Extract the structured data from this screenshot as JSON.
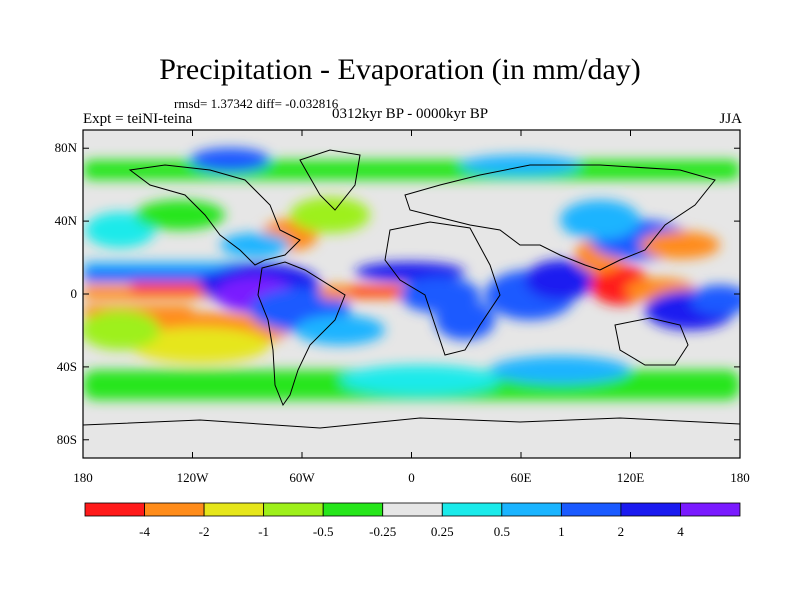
{
  "header": {
    "title": "Precipitation - Evaporation (in mm/day)",
    "stats": "rmsd= 1.37342 diff= -0.032816",
    "period": "0312kyr BP - 0000kyr BP",
    "experiment": "Expt = teiNI-teina",
    "season": "JJA"
  },
  "axes": {
    "y_ticks": [
      "80N",
      "40N",
      "0",
      "40S",
      "80S"
    ],
    "y_values": [
      80,
      40,
      0,
      -40,
      -80
    ],
    "x_ticks": [
      "180",
      "120W",
      "60W",
      "0",
      "60E",
      "120E",
      "180"
    ],
    "x_values": [
      -180,
      -120,
      -60,
      0,
      60,
      120,
      180
    ],
    "lon_range": [
      -180,
      180
    ],
    "lat_range": [
      -90,
      90
    ]
  },
  "colorbar": {
    "colors": [
      "#ff1a1a",
      "#ff8c1a",
      "#e6e61a",
      "#9ef01a",
      "#26e61a",
      "#e6e6e6",
      "#1aeaea",
      "#1ab4ff",
      "#1a5aff",
      "#1a1af0",
      "#7a1aff"
    ],
    "labels": [
      "-4",
      "-2",
      "-1",
      "-0.5",
      "-0.25",
      "0.25",
      "0.5",
      "1",
      "2",
      "4"
    ]
  },
  "chart_data": {
    "type": "heatmap",
    "title": "Precipitation - Evaporation (in mm/day)",
    "subtitle": "0312kyr BP - 0000kyr BP",
    "xlim": [
      -180,
      180
    ],
    "ylim": [
      -90,
      90
    ],
    "levels": [
      -4,
      -2,
      -1,
      -0.5,
      -0.25,
      0.25,
      0.5,
      1,
      2,
      4
    ],
    "features": [
      {
        "lon": -125,
        "lat": 8,
        "value": -3
      },
      {
        "lon": -150,
        "lat": 8,
        "value": -2.5
      },
      {
        "lon": -170,
        "lat": 8,
        "value": -1.5
      },
      {
        "lon": -45,
        "lat": 8,
        "value": -3
      },
      {
        "lon": -25,
        "lat": 6,
        "value": -2.5
      },
      {
        "lon": 5,
        "lat": 7,
        "value": 3
      },
      {
        "lon": -75,
        "lat": 8,
        "value": 3
      },
      {
        "lon": -90,
        "lat": 0,
        "value": 4
      },
      {
        "lon": 30,
        "lat": -5,
        "value": 2
      },
      {
        "lon": 70,
        "lat": 0,
        "value": 3
      },
      {
        "lon": 100,
        "lat": 5,
        "value": 3
      },
      {
        "lon": 115,
        "lat": 10,
        "value": -3
      },
      {
        "lon": 135,
        "lat": 5,
        "value": -3
      },
      {
        "lon": 170,
        "lat": -10,
        "value": 2
      },
      {
        "lon": 130,
        "lat": 35,
        "value": 2
      },
      {
        "lon": -145,
        "lat": -30,
        "value": -2
      },
      {
        "lon": -60,
        "lat": -35,
        "value": -1
      },
      {
        "lon": -80,
        "lat": 25,
        "value": -2
      }
    ]
  }
}
